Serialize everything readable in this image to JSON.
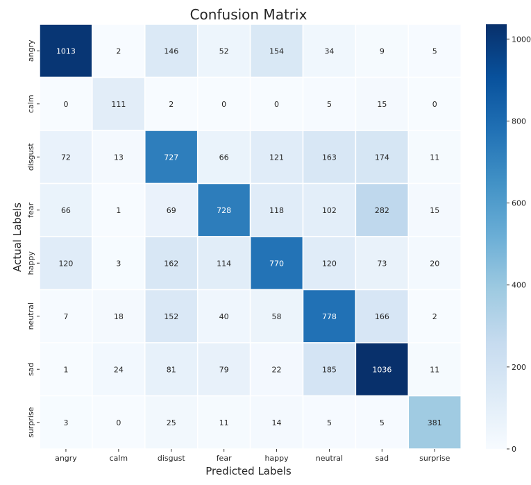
{
  "chart_data": {
    "type": "heatmap",
    "title": "Confusion Matrix",
    "xlabel": "Predicted Labels",
    "ylabel": "Actual Labels",
    "x_categories": [
      "angry",
      "calm",
      "disgust",
      "fear",
      "happy",
      "neutral",
      "sad",
      "surprise"
    ],
    "y_categories": [
      "angry",
      "calm",
      "disgust",
      "fear",
      "happy",
      "neutral",
      "sad",
      "surprise"
    ],
    "values": [
      [
        1013,
        2,
        146,
        52,
        154,
        34,
        9,
        5
      ],
      [
        0,
        111,
        2,
        0,
        0,
        5,
        15,
        0
      ],
      [
        72,
        13,
        727,
        66,
        121,
        163,
        174,
        11
      ],
      [
        66,
        1,
        69,
        728,
        118,
        102,
        282,
        15
      ],
      [
        120,
        3,
        162,
        114,
        770,
        120,
        73,
        20
      ],
      [
        7,
        18,
        152,
        40,
        58,
        778,
        166,
        2
      ],
      [
        1,
        24,
        81,
        79,
        22,
        185,
        1036,
        11
      ],
      [
        3,
        0,
        25,
        11,
        14,
        5,
        5,
        381
      ]
    ],
    "colorscale": "Blues",
    "colorbar": {
      "min": 0,
      "max": 1036,
      "ticks": [
        0,
        200,
        400,
        600,
        800,
        1000
      ]
    },
    "grid": false,
    "annotations": "cell values shown"
  }
}
